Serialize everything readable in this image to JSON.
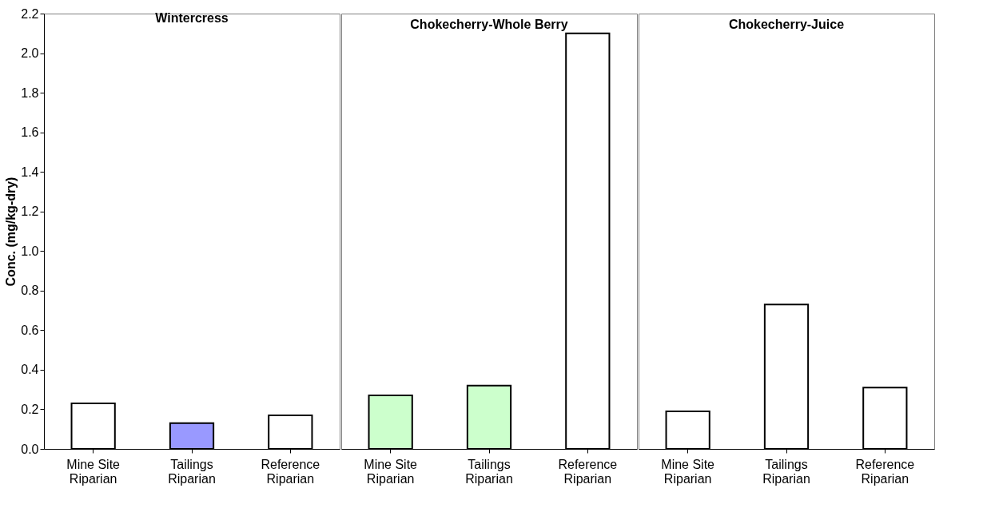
{
  "chart_data": [
    {
      "type": "bar",
      "title": "Wintercress",
      "ylabel": "Conc.  (mg/kg-dry)",
      "categories": [
        "Mine Site Riparian",
        "Tailings Riparian",
        "Reference Riparian"
      ],
      "values": [
        0.23,
        0.13,
        0.17
      ],
      "colors": [
        "#ffffff",
        "#9999ff",
        "#ffffff"
      ],
      "ylim": [
        0,
        2.2
      ],
      "yticks": [
        {
          "value": 0,
          "label": "0.0"
        },
        {
          "value": 0.2,
          "label": "0.2"
        },
        {
          "value": 0.4,
          "label": "0.4"
        },
        {
          "value": 0.6,
          "label": "0.6"
        },
        {
          "value": 0.8,
          "label": "0.8"
        },
        {
          "value": 1.0,
          "label": "1.0"
        },
        {
          "value": 1.2,
          "label": "1.2"
        },
        {
          "value": 1.4,
          "label": "1.4"
        },
        {
          "value": 1.6,
          "label": "1.6"
        },
        {
          "value": 1.8,
          "label": "1.8"
        },
        {
          "value": 2.0,
          "label": "2.0"
        },
        {
          "value": 2.2,
          "label": "2.2"
        }
      ]
    },
    {
      "type": "bar",
      "title": "Chokecherry-Whole Berry",
      "categories": [
        "Mine Site Riparian",
        "Tailings Riparian",
        "Reference Riparian"
      ],
      "values": [
        0.27,
        0.32,
        2.1
      ],
      "colors": [
        "#ccffcc",
        "#ccffcc",
        "#ffffff"
      ],
      "ylim": [
        0,
        2.2
      ],
      "tick_labels": "x"
    },
    {
      "type": "bar",
      "title": "Chokecherry-Juice",
      "categories": [
        "Mine Site Riparian",
        "Tailings Riparian",
        "Reference Riparian"
      ],
      "values": [
        0.19,
        0.73,
        0.31
      ],
      "colors": [
        "#ffffff",
        "#ffffff",
        "#ffffff"
      ],
      "ylim": [
        0,
        2.2
      ],
      "tick_labels": "x"
    }
  ]
}
